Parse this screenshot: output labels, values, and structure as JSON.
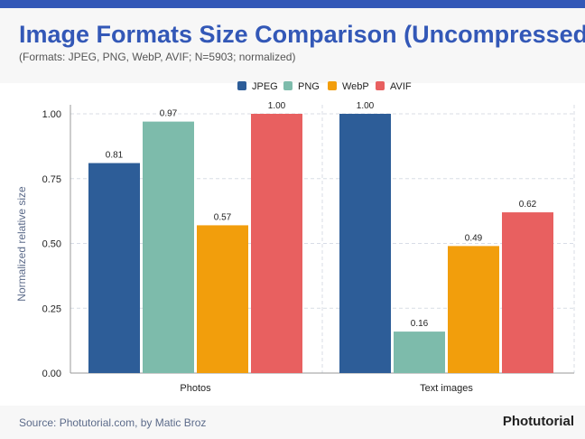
{
  "header": {
    "title": "Image Formats Size Comparison (Uncompressed)",
    "subtitle": "(Formats: JPEG, PNG, WebP, AVIF; N=5903; normalized)"
  },
  "footer": {
    "source": "Source: Photutorial.com, by Matic Broz",
    "brand": "Photutorial"
  },
  "chart_data": {
    "type": "bar",
    "title": "Image Formats Size Comparison (Uncompressed)",
    "ylabel": "Normalized relative size",
    "xlabel": "",
    "categories": [
      "Photos",
      "Text images"
    ],
    "ylim": [
      0,
      1
    ],
    "yticks": [
      "0.00",
      "0.25",
      "0.50",
      "0.75",
      "1.00"
    ],
    "grid": true,
    "legend": "top",
    "series": [
      {
        "name": "JPEG",
        "color": "#2d5d98",
        "values": [
          0.81,
          1.0
        ]
      },
      {
        "name": "PNG",
        "color": "#7dbbab",
        "values": [
          0.97,
          0.16
        ]
      },
      {
        "name": "WebP",
        "color": "#f29e0c",
        "values": [
          0.57,
          0.49
        ]
      },
      {
        "name": "AVIF",
        "color": "#e86060",
        "values": [
          1.0,
          0.62
        ]
      }
    ]
  }
}
